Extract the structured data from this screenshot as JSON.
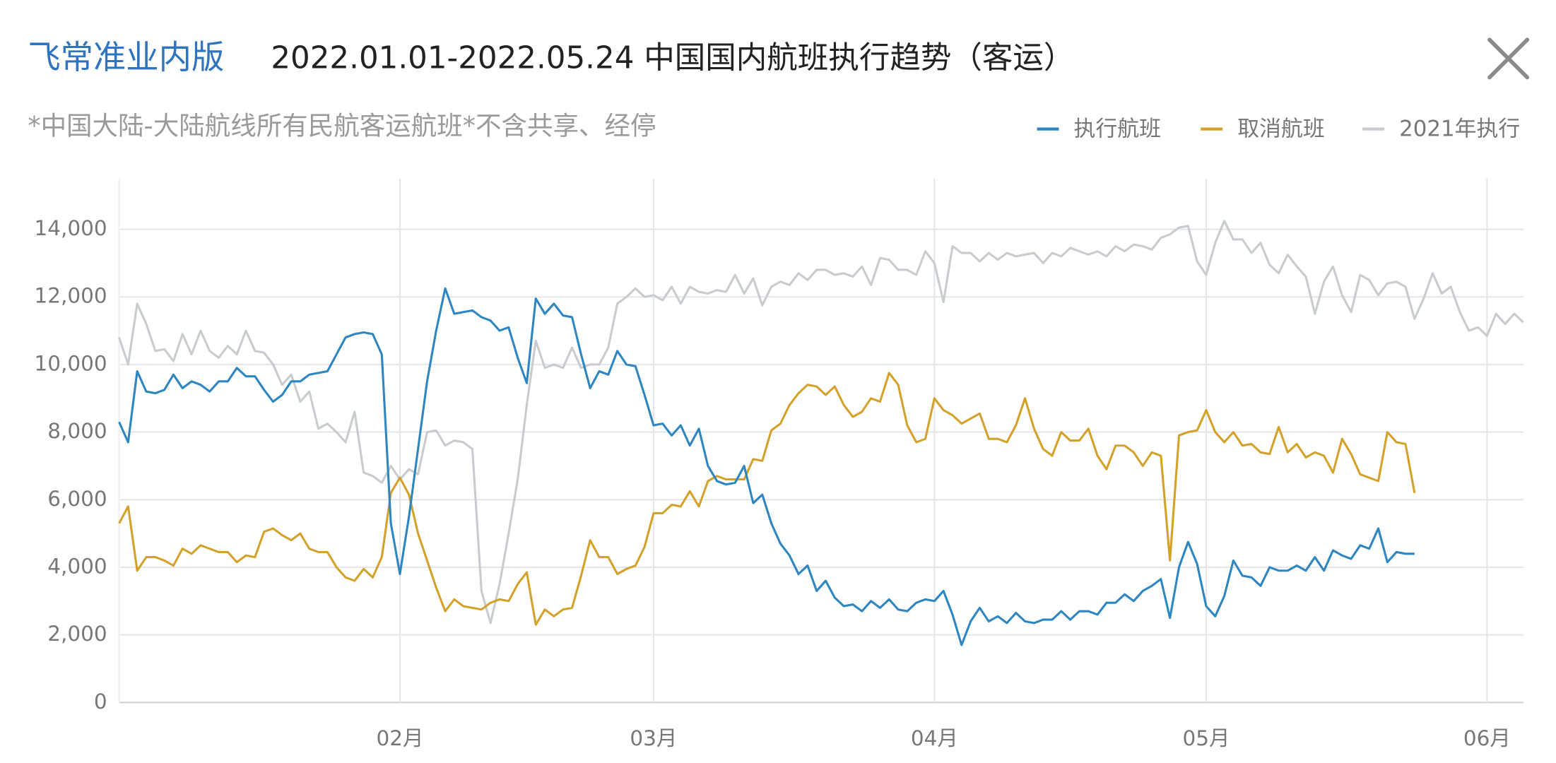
{
  "chart_data": {
    "type": "line",
    "brand": "飞常准业内版",
    "title": "2022.01.01-2022.05.24 中国国内航班执行趋势（客运）",
    "subtitle": "*中国大陆-大陆航线所有民航客运航班*不含共享、经停",
    "x": [
      1,
      2,
      3,
      4,
      5,
      6,
      7,
      8,
      9,
      10,
      11,
      12,
      13,
      14,
      15,
      16,
      17,
      18,
      19,
      20,
      21,
      22,
      23,
      24,
      25,
      26,
      27,
      28,
      29,
      30,
      31,
      32,
      33,
      34,
      35,
      36,
      37,
      38,
      39,
      40,
      41,
      42,
      43,
      44,
      45,
      46,
      47,
      48,
      49,
      50,
      51,
      52,
      53,
      54,
      55,
      56,
      57,
      58,
      59,
      60,
      61,
      62,
      63,
      64,
      65,
      66,
      67,
      68,
      69,
      70,
      71,
      72,
      73,
      74,
      75,
      76,
      77,
      78,
      79,
      80,
      81,
      82,
      83,
      84,
      85,
      86,
      87,
      88,
      89,
      90,
      91,
      92,
      93,
      94,
      95,
      96,
      97,
      98,
      99,
      100,
      101,
      102,
      103,
      104,
      105,
      106,
      107,
      108,
      109,
      110,
      111,
      112,
      113,
      114,
      115,
      116,
      117,
      118,
      119,
      120,
      121,
      122,
      123,
      124,
      125,
      126,
      127,
      128,
      129,
      130,
      131,
      132,
      133,
      134,
      135,
      136,
      137,
      138,
      139,
      140,
      141,
      142,
      143,
      144,
      145,
      146,
      147,
      148,
      149,
      150,
      151,
      152,
      153,
      154,
      155,
      156
    ],
    "xlim": [
      1,
      156
    ],
    "xticks": [
      {
        "value": 32,
        "label": "02月"
      },
      {
        "value": 60,
        "label": "03月"
      },
      {
        "value": 91,
        "label": "04月"
      },
      {
        "value": 121,
        "label": "05月"
      },
      {
        "value": 152,
        "label": "06月"
      }
    ],
    "ylim": [
      0,
      15500
    ],
    "yticks": [
      0,
      {
        "value": 2000,
        "label": "2,000"
      },
      {
        "value": 4000,
        "label": "4,000"
      },
      {
        "value": 6000,
        "label": "6,000"
      },
      {
        "value": 8000,
        "label": "8,000"
      },
      {
        "value": 10000,
        "label": "10,000"
      },
      {
        "value": 12000,
        "label": "12,000"
      },
      {
        "value": 14000,
        "label": "14,000"
      }
    ],
    "grid": true,
    "legend": "top-right",
    "series": [
      {
        "name": "执行航班",
        "color": "#2e86c1",
        "values": [
          8300,
          7700,
          9800,
          9200,
          9150,
          9250,
          9700,
          9300,
          9500,
          9400,
          9200,
          9500,
          9500,
          9900,
          9650,
          9650,
          9250,
          8900,
          9100,
          9500,
          9500,
          9700,
          9750,
          9800,
          10300,
          10800,
          10900,
          10950,
          10900,
          10300,
          5300,
          3800,
          5500,
          7500,
          9500,
          11000,
          12250,
          11500,
          11550,
          11600,
          11400,
          11300,
          11000,
          11100,
          10200,
          9450,
          11950,
          11500,
          11800,
          11450,
          11400,
          10300,
          9300,
          9800,
          9700,
          10400,
          10000,
          9950,
          9100,
          8200,
          8250,
          7900,
          8200,
          7600,
          8100,
          7000,
          6550,
          6450,
          6500,
          7000,
          5900,
          6150,
          5300,
          4700,
          4350,
          3800,
          4050,
          3300,
          3600,
          3100,
          2850,
          2900,
          2700,
          3000,
          2800,
          3050,
          2750,
          2700,
          2950,
          3050,
          3000,
          3300,
          2600,
          1700,
          2400,
          2800,
          2400,
          2550,
          2350,
          2650,
          2400,
          2350,
          2450,
          2450,
          2700,
          2450,
          2700,
          2700,
          2600,
          2950,
          2950,
          3200,
          3000,
          3300,
          3450,
          3650,
          2500,
          4000,
          4750,
          4100,
          2850,
          2550,
          3150,
          4200,
          3750,
          3700,
          3450,
          4000,
          3900,
          3900,
          4050,
          3900,
          4300,
          3900,
          4500,
          4350,
          4250,
          4650,
          4550,
          5150,
          4150,
          4450,
          4400,
          4400,
          null,
          null,
          null,
          null,
          null,
          null,
          null,
          null,
          null,
          null,
          null,
          null
        ]
      },
      {
        "name": "取消航班",
        "color": "#d4a22a",
        "values": [
          5300,
          5800,
          3900,
          4300,
          4300,
          4200,
          4050,
          4550,
          4400,
          4650,
          4550,
          4450,
          4450,
          4150,
          4350,
          4300,
          5050,
          5150,
          4950,
          4800,
          5000,
          4550,
          4450,
          4450,
          4000,
          3700,
          3600,
          3950,
          3700,
          4300,
          6200,
          6650,
          6150,
          5000,
          4200,
          3400,
          2700,
          3050,
          2850,
          2800,
          2750,
          2950,
          3050,
          3000,
          3500,
          3850,
          2300,
          2750,
          2550,
          2750,
          2800,
          3750,
          4800,
          4300,
          4300,
          3800,
          3950,
          4050,
          4600,
          5600,
          5600,
          5850,
          5800,
          6250,
          5800,
          6550,
          6700,
          6600,
          6600,
          6600,
          7200,
          7150,
          8050,
          8250,
          8800,
          9150,
          9400,
          9350,
          9100,
          9350,
          8800,
          8450,
          8600,
          9000,
          8900,
          9750,
          9400,
          8200,
          7700,
          7800,
          9000,
          8650,
          8500,
          8250,
          8400,
          8550,
          7800,
          7800,
          7700,
          8200,
          9000,
          8100,
          7500,
          7300,
          8000,
          7750,
          7750,
          8100,
          7300,
          6900,
          7600,
          7600,
          7400,
          7000,
          7400,
          7300,
          4200,
          7900,
          8000,
          8050,
          8650,
          8000,
          7700,
          8000,
          7600,
          7650,
          7400,
          7350,
          8150,
          7400,
          7650,
          7250,
          7400,
          7300,
          6800,
          7800,
          7350,
          6750,
          6650,
          6550,
          8000,
          7700,
          7650,
          6200,
          null,
          null,
          null,
          null,
          null,
          null,
          null,
          null,
          null,
          null,
          null,
          null
        ]
      },
      {
        "name": "2021年执行",
        "color": "#c8ccd0",
        "values": [
          10800,
          10000,
          11800,
          11200,
          10400,
          10450,
          10100,
          10900,
          10300,
          11000,
          10400,
          10200,
          10550,
          10300,
          11000,
          10400,
          10350,
          10000,
          9400,
          9700,
          8900,
          9200,
          8100,
          8250,
          8000,
          7700,
          8600,
          6800,
          6700,
          6500,
          7000,
          6600,
          6900,
          6750,
          8000,
          8050,
          7600,
          7750,
          7700,
          7500,
          3300,
          2350,
          3500,
          5000,
          6600,
          8800,
          10700,
          9900,
          10000,
          9900,
          10500,
          9900,
          10000,
          10000,
          10500,
          11800,
          12000,
          12250,
          12000,
          12050,
          11900,
          12300,
          11800,
          12300,
          12150,
          12100,
          12200,
          12150,
          12650,
          12100,
          12550,
          11750,
          12300,
          12450,
          12350,
          12700,
          12500,
          12800,
          12800,
          12650,
          12700,
          12600,
          12900,
          12350,
          13150,
          13100,
          12800,
          12800,
          12650,
          13350,
          13000,
          11850,
          13500,
          13300,
          13300,
          13050,
          13300,
          13100,
          13300,
          13200,
          13250,
          13300,
          13000,
          13300,
          13200,
          13450,
          13350,
          13250,
          13350,
          13200,
          13500,
          13350,
          13550,
          13500,
          13400,
          13750,
          13850,
          14050,
          14100,
          13050,
          12650,
          13600,
          14250,
          13700,
          13700,
          13300,
          13600,
          12950,
          12700,
          13250,
          12900,
          12600,
          11500,
          12450,
          12900,
          12050,
          11550,
          12650,
          12500,
          12050,
          12400,
          12450,
          12300,
          11350,
          11950,
          12700,
          12100,
          12300,
          11550,
          11000,
          11100,
          10850,
          11500,
          11200,
          11500,
          11250
        ]
      }
    ]
  }
}
